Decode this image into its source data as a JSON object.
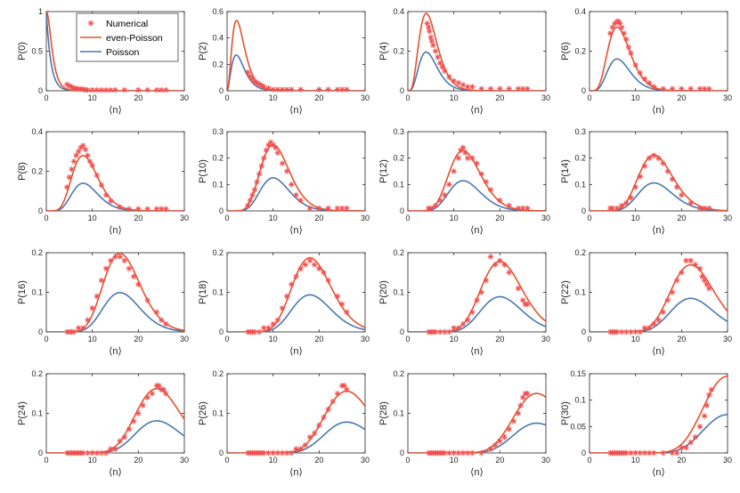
{
  "figure": {
    "xlabel": "⟨n⟩",
    "legend": {
      "placement": "top-right of first panel",
      "entries": [
        "Numerical",
        "even-Poisson",
        "Poisson"
      ]
    },
    "colors": {
      "numerical": "#f0504f",
      "even_poisson": "#e8502e",
      "poisson": "#4a78b0",
      "axis": "#262626"
    }
  },
  "chart_data": [
    {
      "type": "line",
      "ylabel": "P(0)",
      "k": 0,
      "ylim": [
        0,
        1
      ],
      "yticks": [
        "0",
        "0.5",
        "1"
      ],
      "xlim": [
        0,
        30
      ],
      "xticks": [
        "0",
        "10",
        "20",
        "30"
      ],
      "legend_visible": true,
      "numerical": {
        "x": [
          4.5,
          5,
          5.5,
          6,
          6.5,
          7,
          7.5,
          8,
          8.5,
          9,
          10,
          11,
          12,
          13,
          14,
          15,
          17,
          20,
          22,
          24,
          25,
          26
        ],
        "y": [
          0.08,
          0.06,
          0.05,
          0.03,
          0.03,
          0.02,
          0.02,
          0.02,
          0.01,
          0.01,
          0.01,
          0.01,
          0.01,
          0.01,
          0.01,
          0.01,
          0.01,
          0.01,
          0.01,
          0.01,
          0.01,
          0.01
        ]
      }
    },
    {
      "type": "line",
      "ylabel": "P(2)",
      "k": 2,
      "ylim": [
        0,
        0.6
      ],
      "yticks": [
        "0",
        "0.2",
        "0.4",
        "0.6"
      ],
      "xlim": [
        0,
        30
      ],
      "xticks": [
        "0",
        "10",
        "20",
        "30"
      ],
      "numerical": {
        "x": [
          4.5,
          5,
          5.5,
          6,
          6.5,
          7,
          7.5,
          8,
          9,
          10,
          11,
          12,
          13,
          14,
          16,
          20,
          22,
          24,
          25,
          26
        ],
        "y": [
          0.14,
          0.11,
          0.09,
          0.07,
          0.06,
          0.05,
          0.04,
          0.03,
          0.02,
          0.01,
          0.01,
          0.01,
          0.01,
          0.01,
          0.01,
          0.01,
          0.01,
          0.01,
          0.01,
          0.01
        ]
      }
    },
    {
      "type": "line",
      "ylabel": "P(4)",
      "k": 4,
      "ylim": [
        0,
        0.4
      ],
      "yticks": [
        "0",
        "0.2",
        "0.4"
      ],
      "xlim": [
        0,
        30
      ],
      "xticks": [
        "0",
        "10",
        "20",
        "30"
      ],
      "numerical": {
        "x": [
          4.2,
          4.5,
          4.7,
          5,
          5.2,
          5.5,
          6,
          6.5,
          7,
          7.5,
          8,
          9,
          10,
          11,
          12,
          13,
          14,
          16,
          18,
          20,
          22,
          24,
          25,
          26
        ],
        "y": [
          0.34,
          0.32,
          0.3,
          0.27,
          0.25,
          0.23,
          0.2,
          0.17,
          0.14,
          0.12,
          0.1,
          0.07,
          0.05,
          0.04,
          0.03,
          0.02,
          0.02,
          0.01,
          0.01,
          0.01,
          0.01,
          0.01,
          0.01,
          0.01
        ]
      }
    },
    {
      "type": "line",
      "ylabel": "P(6)",
      "k": 6,
      "ylim": [
        0,
        0.4
      ],
      "yticks": [
        "0",
        "0.2",
        "0.4"
      ],
      "xlim": [
        0,
        30
      ],
      "xticks": [
        "0",
        "10",
        "20",
        "30"
      ],
      "numerical": {
        "x": [
          4.5,
          5,
          5.5,
          6,
          6.3,
          6.6,
          7,
          7.5,
          8,
          8.5,
          9,
          10,
          11,
          12,
          13,
          14,
          16,
          18,
          20,
          22,
          24,
          25,
          26
        ],
        "y": [
          0.29,
          0.32,
          0.34,
          0.35,
          0.35,
          0.34,
          0.32,
          0.29,
          0.26,
          0.22,
          0.19,
          0.13,
          0.09,
          0.06,
          0.04,
          0.02,
          0.01,
          0.01,
          0.01,
          0.01,
          0.01,
          0.01,
          0.01
        ]
      }
    },
    {
      "type": "line",
      "ylabel": "P(8)",
      "k": 8,
      "ylim": [
        0,
        0.4
      ],
      "yticks": [
        "0",
        "0.2",
        "0.4"
      ],
      "xlim": [
        0,
        30
      ],
      "xticks": [
        "0",
        "10",
        "20",
        "30"
      ],
      "numerical": {
        "x": [
          4.5,
          5,
          5.5,
          6,
          6.5,
          7,
          7.5,
          8,
          8.5,
          9,
          9.5,
          10,
          11,
          12,
          13,
          14,
          16,
          18,
          20,
          22,
          24,
          25,
          26
        ],
        "y": [
          0.12,
          0.17,
          0.21,
          0.25,
          0.28,
          0.3,
          0.32,
          0.33,
          0.31,
          0.28,
          0.25,
          0.23,
          0.18,
          0.13,
          0.08,
          0.05,
          0.02,
          0.01,
          0.01,
          0.01,
          0.01,
          0.01,
          0.01
        ]
      }
    },
    {
      "type": "line",
      "ylabel": "P(10)",
      "k": 10,
      "ylim": [
        0,
        0.3
      ],
      "yticks": [
        "0",
        "0.1",
        "0.2",
        "0.3"
      ],
      "xlim": [
        0,
        30
      ],
      "xticks": [
        "0",
        "10",
        "20",
        "30"
      ],
      "numerical": {
        "x": [
          4.5,
          5,
          5.5,
          6,
          6.5,
          7,
          7.5,
          8,
          8.5,
          9,
          9.5,
          10,
          10.5,
          11,
          12,
          13,
          14,
          15,
          16,
          18,
          20,
          22,
          24,
          25,
          26
        ],
        "y": [
          0.02,
          0.04,
          0.06,
          0.08,
          0.11,
          0.14,
          0.17,
          0.2,
          0.23,
          0.25,
          0.26,
          0.25,
          0.24,
          0.22,
          0.18,
          0.15,
          0.1,
          0.06,
          0.04,
          0.01,
          0.01,
          0.01,
          0.01,
          0.01,
          0.01
        ]
      }
    },
    {
      "type": "line",
      "ylabel": "P(12)",
      "k": 12,
      "ylim": [
        0,
        0.3
      ],
      "yticks": [
        "0",
        "0.1",
        "0.2",
        "0.3"
      ],
      "xlim": [
        0,
        30
      ],
      "xticks": [
        "0",
        "10",
        "20",
        "30"
      ],
      "numerical": {
        "x": [
          4.5,
          5,
          6,
          7,
          8,
          9,
          10,
          11,
          11.5,
          12,
          12.5,
          13,
          14,
          15,
          16,
          17,
          18,
          20,
          22,
          24,
          25,
          26
        ],
        "y": [
          0.01,
          0.01,
          0.02,
          0.04,
          0.06,
          0.1,
          0.15,
          0.2,
          0.23,
          0.24,
          0.22,
          0.2,
          0.2,
          0.18,
          0.14,
          0.11,
          0.08,
          0.04,
          0.02,
          0.01,
          0.01,
          0.01
        ]
      }
    },
    {
      "type": "line",
      "ylabel": "P(14)",
      "k": 14,
      "ylim": [
        0,
        0.3
      ],
      "yticks": [
        "0",
        "0.1",
        "0.2",
        "0.3"
      ],
      "xlim": [
        0,
        30
      ],
      "xticks": [
        "0",
        "10",
        "20",
        "30"
      ],
      "numerical": {
        "x": [
          4.5,
          5,
          6,
          7,
          8,
          9,
          10,
          11,
          12,
          13,
          14,
          15,
          16,
          17,
          18,
          19,
          20,
          22,
          24,
          25,
          26
        ],
        "y": [
          0.01,
          0.01,
          0.01,
          0.02,
          0.03,
          0.05,
          0.09,
          0.13,
          0.17,
          0.2,
          0.21,
          0.2,
          0.18,
          0.15,
          0.12,
          0.09,
          0.06,
          0.03,
          0.01,
          0.01,
          0.01
        ]
      }
    },
    {
      "type": "line",
      "ylabel": "P(16)",
      "k": 16,
      "ylim": [
        0,
        0.2
      ],
      "yticks": [
        "0",
        "0.1",
        "0.2"
      ],
      "xlim": [
        0,
        30
      ],
      "xticks": [
        "0",
        "10",
        "20",
        "30"
      ],
      "numerical": {
        "x": [
          4.5,
          5,
          5.5,
          6,
          7,
          8,
          9,
          10,
          11,
          12,
          13,
          14,
          15,
          16,
          17,
          18,
          19,
          20,
          22,
          24,
          25,
          26
        ],
        "y": [
          0.0,
          0.0,
          0.0,
          0.0,
          0.01,
          0.01,
          0.03,
          0.06,
          0.09,
          0.13,
          0.16,
          0.18,
          0.19,
          0.19,
          0.18,
          0.16,
          0.14,
          0.12,
          0.08,
          0.05,
          0.03,
          0.02
        ]
      }
    },
    {
      "type": "line",
      "ylabel": "P(18)",
      "k": 18,
      "ylim": [
        0,
        0.2
      ],
      "yticks": [
        "0",
        "0.1",
        "0.2"
      ],
      "xlim": [
        0,
        30
      ],
      "xticks": [
        "0",
        "10",
        "20",
        "30"
      ],
      "numerical": {
        "x": [
          4.5,
          5,
          5.5,
          6,
          7,
          8,
          9,
          10,
          11,
          12,
          13,
          14,
          15,
          16,
          17,
          18,
          19,
          20,
          21,
          22,
          24,
          25,
          26
        ],
        "y": [
          0.0,
          0.0,
          0.0,
          0.0,
          0.0,
          0.01,
          0.01,
          0.02,
          0.03,
          0.06,
          0.09,
          0.12,
          0.14,
          0.16,
          0.17,
          0.18,
          0.17,
          0.16,
          0.15,
          0.13,
          0.09,
          0.07,
          0.05
        ]
      }
    },
    {
      "type": "line",
      "ylabel": "P(20)",
      "k": 20,
      "ylim": [
        0,
        0.2
      ],
      "yticks": [
        "0",
        "0.1",
        "0.2"
      ],
      "xlim": [
        0,
        30
      ],
      "xticks": [
        "0",
        "10",
        "20",
        "30"
      ],
      "numerical": {
        "x": [
          4.5,
          5,
          5.5,
          6,
          7,
          8,
          9,
          10,
          11,
          12,
          13,
          14,
          15,
          16,
          17,
          18,
          19,
          20,
          21,
          22,
          24,
          25,
          25.5,
          26
        ],
        "y": [
          0.0,
          0.0,
          0.0,
          0.0,
          0.0,
          0.0,
          0.0,
          0.01,
          0.01,
          0.02,
          0.03,
          0.05,
          0.08,
          0.1,
          0.13,
          0.19,
          0.17,
          0.18,
          0.17,
          0.15,
          0.11,
          0.08,
          0.07,
          0.07
        ]
      }
    },
    {
      "type": "line",
      "ylabel": "P(22)",
      "k": 22,
      "ylim": [
        0,
        0.2
      ],
      "yticks": [
        "0",
        "0.1",
        "0.2"
      ],
      "xlim": [
        0,
        30
      ],
      "xticks": [
        "0",
        "10",
        "20",
        "30"
      ],
      "numerical": {
        "x": [
          4.5,
          5,
          5.5,
          6,
          7,
          8,
          9,
          10,
          11,
          12,
          13,
          14,
          15,
          16,
          17,
          18,
          19,
          20,
          21,
          22,
          23,
          24,
          24.5,
          25,
          25.5,
          26
        ],
        "y": [
          0.0,
          0.0,
          0.0,
          0.0,
          0.0,
          0.0,
          0.0,
          0.0,
          0.0,
          0.01,
          0.01,
          0.02,
          0.03,
          0.05,
          0.08,
          0.1,
          0.13,
          0.15,
          0.18,
          0.18,
          0.17,
          0.16,
          0.14,
          0.13,
          0.12,
          0.11
        ]
      }
    },
    {
      "type": "line",
      "ylabel": "P(24)",
      "k": 24,
      "ylim": [
        0,
        0.2
      ],
      "yticks": [
        "0",
        "0.1",
        "0.2"
      ],
      "xlim": [
        0,
        30
      ],
      "xticks": [
        "0",
        "10",
        "20",
        "30"
      ],
      "numerical": {
        "x": [
          4.5,
          5,
          5.5,
          6,
          6.5,
          7,
          7.5,
          8,
          9,
          10,
          11,
          12,
          13,
          14,
          15,
          16,
          17,
          18,
          19,
          20,
          21,
          22,
          23,
          24,
          24.5,
          25,
          25.5,
          26
        ],
        "y": [
          0.0,
          0.0,
          0.0,
          0.0,
          0.0,
          0.0,
          0.0,
          0.0,
          0.0,
          0.0,
          0.0,
          0.0,
          0.0,
          0.01,
          0.01,
          0.03,
          0.04,
          0.06,
          0.08,
          0.1,
          0.12,
          0.14,
          0.15,
          0.17,
          0.17,
          0.16,
          0.16,
          0.15
        ]
      }
    },
    {
      "type": "line",
      "ylabel": "P(26)",
      "k": 26,
      "ylim": [
        0,
        0.2
      ],
      "yticks": [
        "0",
        "0.1",
        "0.2"
      ],
      "xlim": [
        0,
        30
      ],
      "xticks": [
        "0",
        "10",
        "20",
        "30"
      ],
      "numerical": {
        "x": [
          4.5,
          5,
          5.5,
          6,
          6.5,
          7,
          7.5,
          8,
          9,
          10,
          11,
          12,
          13,
          14,
          15,
          16,
          17,
          18,
          19,
          20,
          21,
          22,
          23,
          24,
          25,
          25.5,
          26
        ],
        "y": [
          0.0,
          0.0,
          0.0,
          0.0,
          0.0,
          0.0,
          0.0,
          0.0,
          0.0,
          0.0,
          0.0,
          0.0,
          0.0,
          0.0,
          0.01,
          0.01,
          0.02,
          0.04,
          0.05,
          0.07,
          0.09,
          0.11,
          0.13,
          0.15,
          0.17,
          0.17,
          0.16
        ]
      }
    },
    {
      "type": "line",
      "ylabel": "P(28)",
      "k": 28,
      "ylim": [
        0,
        0.2
      ],
      "yticks": [
        "0",
        "0.1",
        "0.2"
      ],
      "xlim": [
        0,
        30
      ],
      "xticks": [
        "0",
        "10",
        "20",
        "30"
      ],
      "numerical": {
        "x": [
          4.5,
          5,
          5.5,
          6,
          6.5,
          7,
          7.5,
          8,
          9,
          10,
          11,
          12,
          13,
          14,
          16,
          18,
          19,
          20,
          21,
          22,
          23,
          24,
          24.5,
          25,
          25.5,
          26
        ],
        "y": [
          0.0,
          0.0,
          0.0,
          0.0,
          0.0,
          0.0,
          0.0,
          0.0,
          0.0,
          0.0,
          0.0,
          0.0,
          0.0,
          0.0,
          0.0,
          0.01,
          0.02,
          0.03,
          0.04,
          0.06,
          0.08,
          0.1,
          0.12,
          0.14,
          0.15,
          0.15
        ]
      }
    },
    {
      "type": "line",
      "ylabel": "P(30)",
      "k": 30,
      "ylim": [
        0,
        0.15
      ],
      "yticks": [
        "0",
        "0.05",
        "0.1",
        "0.15"
      ],
      "xlim": [
        0,
        30
      ],
      "xticks": [
        "0",
        "10",
        "20",
        "30"
      ],
      "numerical": {
        "x": [
          4.5,
          5,
          5.5,
          6,
          6.5,
          7,
          7.5,
          8,
          9,
          10,
          11,
          12,
          13,
          14,
          16,
          18,
          19,
          20,
          21,
          22,
          23,
          24,
          25,
          25.5,
          26,
          26.5
        ],
        "y": [
          0.0,
          0.0,
          0.0,
          0.0,
          0.0,
          0.0,
          0.0,
          0.0,
          0.0,
          0.0,
          0.0,
          0.0,
          0.0,
          0.0,
          0.0,
          0.0,
          0.0,
          0.01,
          0.01,
          0.02,
          0.03,
          0.05,
          0.07,
          0.09,
          0.11,
          0.12
        ]
      }
    }
  ]
}
